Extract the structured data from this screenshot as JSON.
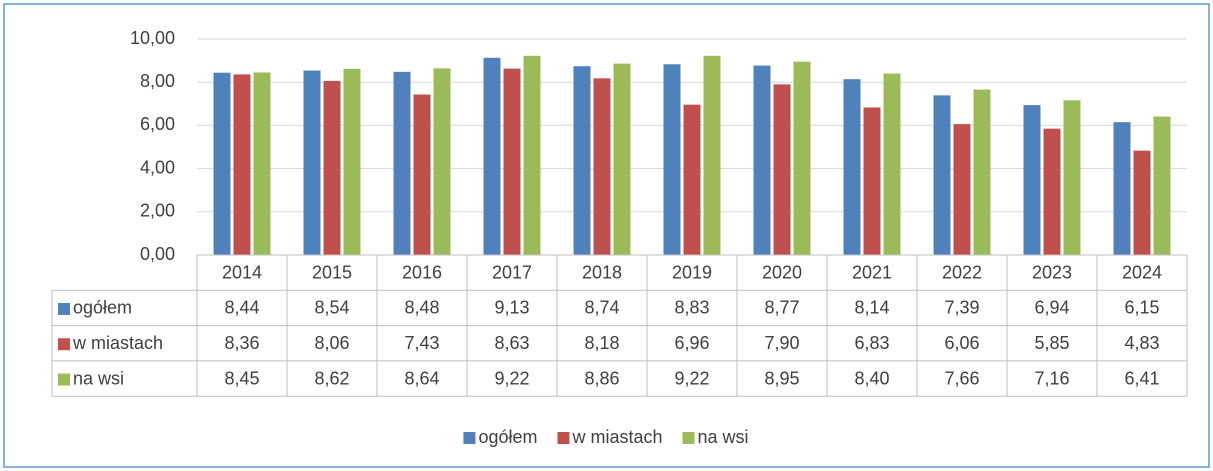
{
  "chart_data": {
    "type": "bar",
    "categories": [
      "2014",
      "2015",
      "2016",
      "2017",
      "2018",
      "2019",
      "2020",
      "2021",
      "2022",
      "2023",
      "2024"
    ],
    "series": [
      {
        "name": "ogółem",
        "color": "#4f81bd",
        "values": [
          8.44,
          8.54,
          8.48,
          9.13,
          8.74,
          8.83,
          8.77,
          8.14,
          7.39,
          6.94,
          6.15
        ],
        "value_labels": [
          "8,44",
          "8,54",
          "8,48",
          "9,13",
          "8,74",
          "8,83",
          "8,77",
          "8,14",
          "7,39",
          "6,94",
          "6,15"
        ]
      },
      {
        "name": "w miastach",
        "color": "#c0504d",
        "values": [
          8.36,
          8.06,
          7.43,
          8.63,
          8.18,
          6.96,
          7.9,
          6.83,
          6.06,
          5.85,
          4.83
        ],
        "value_labels": [
          "8,36",
          "8,06",
          "7,43",
          "8,63",
          "8,18",
          "6,96",
          "7,90",
          "6,83",
          "6,06",
          "5,85",
          "4,83"
        ]
      },
      {
        "name": "na wsi",
        "color": "#9bbb59",
        "values": [
          8.45,
          8.62,
          8.64,
          9.22,
          8.86,
          9.22,
          8.95,
          8.4,
          7.66,
          7.16,
          6.41
        ],
        "value_labels": [
          "8,45",
          "8,62",
          "8,64",
          "9,22",
          "8,86",
          "9,22",
          "8,95",
          "8,40",
          "7,66",
          "7,16",
          "6,41"
        ]
      }
    ],
    "ylim": [
      0,
      10
    ],
    "yticks": [
      {
        "value": 0,
        "label": "0,00"
      },
      {
        "value": 2,
        "label": "2,00"
      },
      {
        "value": 4,
        "label": "4,00"
      },
      {
        "value": 6,
        "label": "6,00"
      },
      {
        "value": 8,
        "label": "8,00"
      },
      {
        "value": 10,
        "label": "10,00"
      }
    ],
    "grid": true,
    "legend": "bottom"
  }
}
